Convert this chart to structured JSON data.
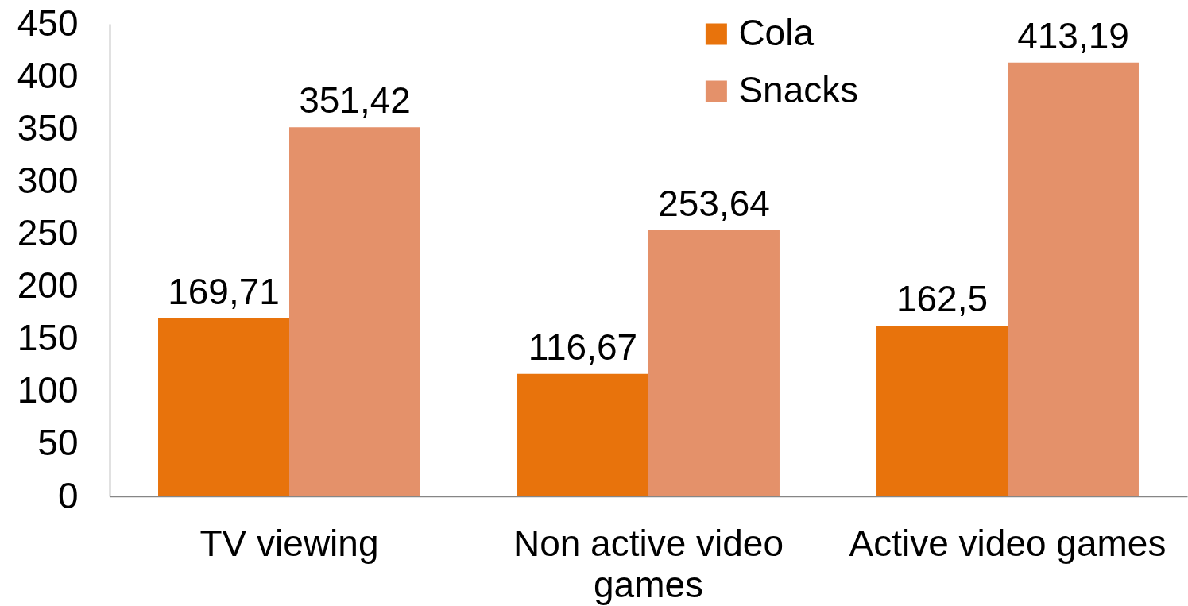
{
  "chart_data": {
    "type": "bar",
    "categories": [
      "TV viewing",
      "Non active video games",
      "Active video games"
    ],
    "series": [
      {
        "name": "Cola",
        "color": "#e8730c",
        "values": [
          169.71,
          116.67,
          162.5
        ],
        "value_labels": [
          "169,71",
          "116,67",
          "162,5"
        ]
      },
      {
        "name": "Snacks",
        "color": "#e4916a",
        "values": [
          351.42,
          253.64,
          413.19
        ],
        "value_labels": [
          "351,42",
          "253,64",
          "413,19"
        ]
      }
    ],
    "ylim": [
      0,
      450
    ],
    "yticks": [
      0,
      50,
      100,
      150,
      200,
      250,
      300,
      350,
      400,
      450
    ],
    "legend": "top right"
  }
}
